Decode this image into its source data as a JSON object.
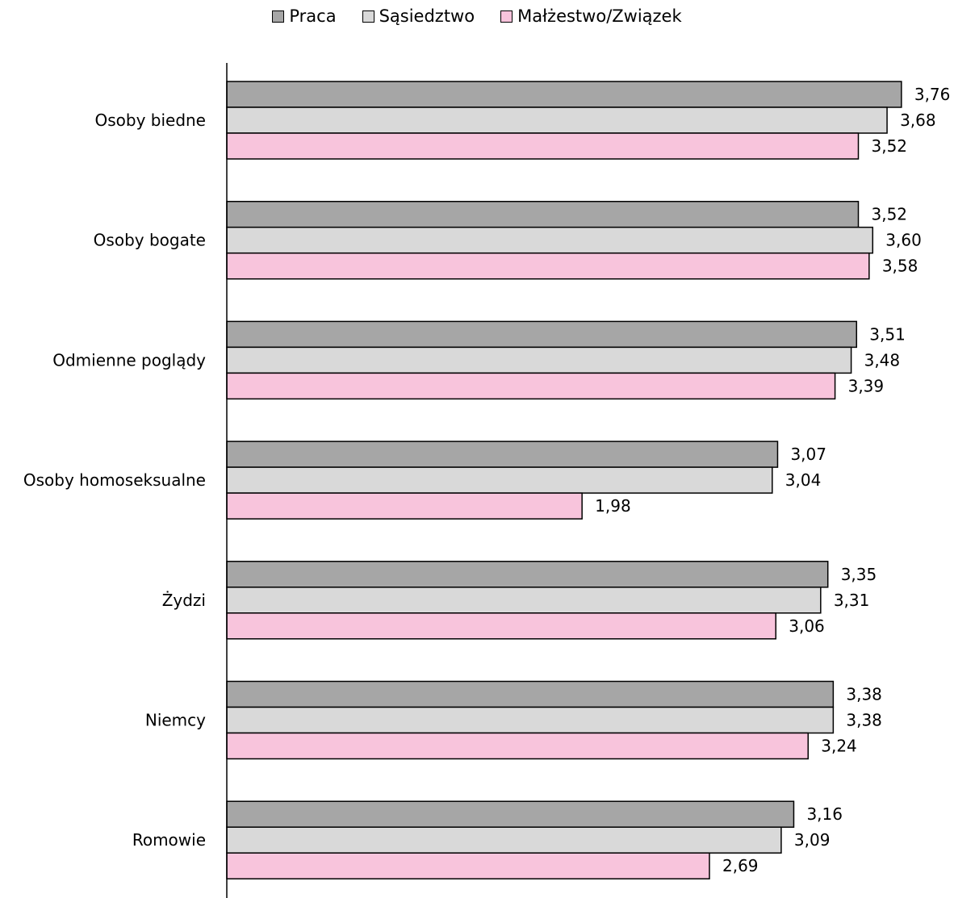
{
  "chart_data": {
    "type": "bar",
    "orientation": "horizontal",
    "categories": [
      "Osoby biedne",
      "Osoby bogate",
      "Odmienne poglądy",
      "Osoby homoseksualne",
      "Żydzi",
      "Niemcy",
      "Romowie"
    ],
    "series": [
      {
        "name": "Praca",
        "color": "#a6a6a6",
        "values": [
          3.76,
          3.52,
          3.51,
          3.07,
          3.35,
          3.38,
          3.16
        ],
        "labels": [
          "3,76",
          "3,52",
          "3,51",
          "3,07",
          "3,35",
          "3,38",
          "3,16"
        ]
      },
      {
        "name": "Sąsiedztwo",
        "color": "#d9d9d9",
        "values": [
          3.68,
          3.6,
          3.48,
          3.04,
          3.31,
          3.38,
          3.09
        ],
        "labels": [
          "3,68",
          "3,60",
          "3,48",
          "3,04",
          "3,31",
          "3,38",
          "3,09"
        ]
      },
      {
        "name": "Małżestwo/Związek",
        "color": "#f8c4dc",
        "values": [
          3.52,
          3.58,
          3.39,
          1.98,
          3.06,
          3.24,
          2.69
        ],
        "labels": [
          "3,52",
          "3,58",
          "3,39",
          "1,98",
          "3,06",
          "3,24",
          "2,69"
        ]
      }
    ],
    "title": "",
    "xlabel": "",
    "ylabel": "",
    "xlim": [
      0,
      4.2
    ],
    "grid": false,
    "legend": "top-center"
  }
}
